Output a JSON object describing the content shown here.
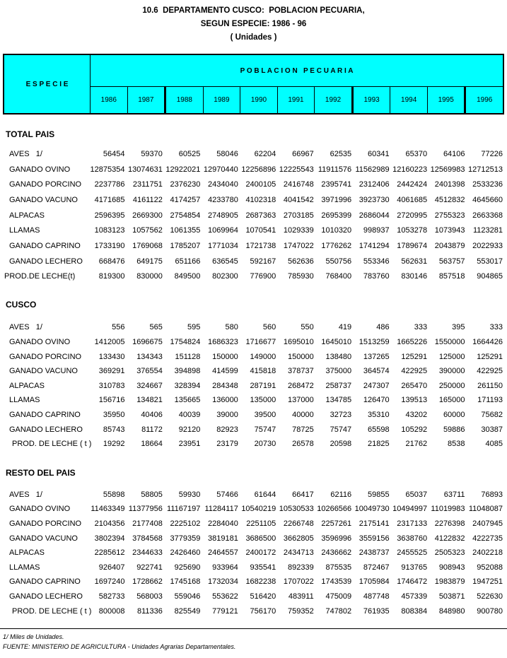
{
  "title": {
    "line1": "10.6  DEPARTAMENTO CUSCO:  POBLACION PECUARIA,",
    "line2": "SEGUN ESPECIE: 1986 - 96",
    "line3": "( Unidades )"
  },
  "colors": {
    "header_background": "#00ffff",
    "border": "#000000",
    "text": "#000000"
  },
  "table_header": {
    "especie_label": "E S P E C I E",
    "group_label": "P O B L A C I O N   P E C U A R I A",
    "years": [
      "1986",
      "1987",
      "1988",
      "1989",
      "1990",
      "1991",
      "1992",
      "1993",
      "1994",
      "1995",
      "1996"
    ],
    "thick_separator_before": [
      "1988",
      "1993",
      "1996"
    ]
  },
  "sections": [
    {
      "id": "total-pais",
      "title": "TOTAL PAIS",
      "rows": [
        {
          "label": "AVES   1/",
          "values": [
            56454,
            59370,
            60525,
            58046,
            62204,
            66967,
            62535,
            60341,
            65370,
            64106,
            77226
          ]
        },
        {
          "label": "GANADO OVINO",
          "values": [
            12875354,
            13074631,
            12922021,
            12970440,
            12256896,
            12225543,
            11911576,
            11562989,
            12160223,
            12569983,
            12712513
          ]
        },
        {
          "label": "GANADO PORCINO",
          "values": [
            2237786,
            2311751,
            2376230,
            2434040,
            2400105,
            2416748,
            2395741,
            2312406,
            2442424,
            2401398,
            2533236
          ]
        },
        {
          "label": "GANADO VACUNO",
          "values": [
            4171685,
            4161122,
            4174257,
            4233780,
            4102318,
            4041542,
            3971996,
            3923730,
            4061685,
            4512832,
            4645660
          ]
        },
        {
          "label": "ALPACAS",
          "values": [
            2596395,
            2669300,
            2754854,
            2748905,
            2687363,
            2703185,
            2695399,
            2686044,
            2720995,
            2755323,
            2663368
          ]
        },
        {
          "label": "LLAMAS",
          "values": [
            1083123,
            1057562,
            1061355,
            1069964,
            1070541,
            1029339,
            1010320,
            998937,
            1053278,
            1073943,
            1123281
          ]
        },
        {
          "label": "GANADO CAPRINO",
          "values": [
            1733190,
            1769068,
            1785207,
            1771034,
            1721738,
            1747022,
            1776262,
            1741294,
            1789674,
            2043879,
            2022933
          ]
        },
        {
          "label": "GANADO LECHERO",
          "values": [
            668476,
            649175,
            651166,
            636545,
            592167,
            562636,
            550756,
            553346,
            562631,
            563757,
            553017
          ]
        },
        {
          "label": "PROD.DE LECHE(t)",
          "values": [
            819300,
            830000,
            849500,
            802300,
            776900,
            785930,
            768400,
            783760,
            830146,
            857518,
            904865
          ]
        }
      ]
    },
    {
      "id": "cusco",
      "title": "CUSCO",
      "rows": [
        {
          "label": "AVES   1/",
          "values": [
            556,
            565,
            595,
            580,
            560,
            550,
            419,
            486,
            333,
            395,
            333
          ]
        },
        {
          "label": "GANADO OVINO",
          "values": [
            1412005,
            1696675,
            1754824,
            1686323,
            1716677,
            1695010,
            1645010,
            1513259,
            1665226,
            1550000,
            1664426
          ]
        },
        {
          "label": "GANADO PORCINO",
          "values": [
            133430,
            134343,
            151128,
            150000,
            149000,
            150000,
            138480,
            137265,
            125291,
            125000,
            125291
          ]
        },
        {
          "label": "GANADO VACUNO",
          "values": [
            369291,
            376554,
            394898,
            414599,
            415818,
            378737,
            375000,
            364574,
            422925,
            390000,
            422925
          ]
        },
        {
          "label": "ALPACAS",
          "values": [
            310783,
            324667,
            328394,
            284348,
            287191,
            268472,
            258737,
            247307,
            265470,
            250000,
            261150
          ]
        },
        {
          "label": "LLAMAS",
          "values": [
            156716,
            134821,
            135665,
            136000,
            135000,
            137000,
            134785,
            126470,
            139513,
            165000,
            171193
          ]
        },
        {
          "label": "GANADO CAPRINO",
          "values": [
            35950,
            40406,
            40039,
            39000,
            39500,
            40000,
            32723,
            35310,
            43202,
            60000,
            75682
          ]
        },
        {
          "label": "GANADO LECHERO",
          "values": [
            85743,
            81172,
            92120,
            82923,
            75747,
            78725,
            75747,
            65598,
            105292,
            59886,
            30387
          ]
        },
        {
          "label": "PROD. DE LECHE ( t )",
          "values": [
            19292,
            18664,
            23951,
            23179,
            20730,
            26578,
            20598,
            21825,
            21762,
            8538,
            4085
          ]
        }
      ]
    },
    {
      "id": "resto-del-pais",
      "title": "RESTO DEL PAIS",
      "rows": [
        {
          "label": "AVES   1/",
          "values": [
            55898,
            58805,
            59930,
            57466,
            61644,
            66417,
            62116,
            59855,
            65037,
            63711,
            76893
          ]
        },
        {
          "label": "GANADO OVINO",
          "values": [
            11463349,
            11377956,
            11167197,
            11284117,
            10540219,
            10530533,
            10266566,
            10049730,
            10494997,
            11019983,
            11048087
          ]
        },
        {
          "label": "GANADO PORCINO",
          "values": [
            2104356,
            2177408,
            2225102,
            2284040,
            2251105,
            2266748,
            2257261,
            2175141,
            2317133,
            2276398,
            2407945
          ]
        },
        {
          "label": "GANADO VACUNO",
          "values": [
            3802394,
            3784568,
            3779359,
            3819181,
            3686500,
            3662805,
            3596996,
            3559156,
            3638760,
            4122832,
            4222735
          ]
        },
        {
          "label": "ALPACAS",
          "values": [
            2285612,
            2344633,
            2426460,
            2464557,
            2400172,
            2434713,
            2436662,
            2438737,
            2455525,
            2505323,
            2402218
          ]
        },
        {
          "label": "LLAMAS",
          "values": [
            926407,
            922741,
            925690,
            933964,
            935541,
            892339,
            875535,
            872467,
            913765,
            908943,
            952088
          ]
        },
        {
          "label": "GANADO CAPRINO",
          "values": [
            1697240,
            1728662,
            1745168,
            1732034,
            1682238,
            1707022,
            1743539,
            1705984,
            1746472,
            1983879,
            1947251
          ]
        },
        {
          "label": "GANADO LECHERO",
          "values": [
            582733,
            568003,
            559046,
            553622,
            516420,
            483911,
            475009,
            487748,
            457339,
            503871,
            522630
          ]
        },
        {
          "label": "PROD. DE LECHE ( t )",
          "values": [
            800008,
            811336,
            825549,
            779121,
            756170,
            759352,
            747802,
            761935,
            808384,
            848980,
            900780
          ]
        }
      ]
    }
  ],
  "footnotes": {
    "note1": "1/ Miles de Unidades.",
    "source": "FUENTE: MINISTERIO DE AGRICULTURA - Unidades Agrarias Departamentales."
  }
}
